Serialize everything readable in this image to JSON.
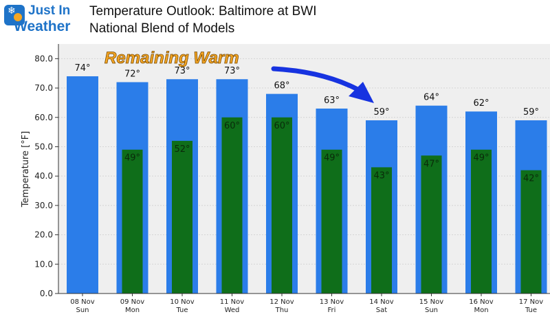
{
  "header": {
    "logo_line1": "Just In",
    "logo_line2": "Weather",
    "title": "Temperature Outlook: Baltimore at BWI",
    "subtitle": "National Blend of Models"
  },
  "colors": {
    "high_bar": "#2b7de9",
    "low_bar": "#0f6e1a",
    "annotation_text": "#f5a623",
    "arrow": "#1733e0",
    "brand": "#1e73c8"
  },
  "icons": [
    "snowflake-icon",
    "sun-icon",
    "arrow-icon"
  ],
  "chart_data": {
    "type": "bar",
    "title": "Temperature Outlook: Baltimore at BWI",
    "subtitle": "National Blend of Models",
    "ylabel": "Temperature [°F]",
    "xlabel": "",
    "ylim": [
      0,
      85
    ],
    "yticks": [
      "0.0",
      "10.0",
      "20.0",
      "30.0",
      "40.0",
      "50.0",
      "60.0",
      "70.0",
      "80.0"
    ],
    "grid": true,
    "annotation": "Remaining Warm",
    "categories": [
      {
        "date": "08 Nov",
        "day": "Sun"
      },
      {
        "date": "09 Nov",
        "day": "Mon"
      },
      {
        "date": "10 Nov",
        "day": "Tue"
      },
      {
        "date": "11 Nov",
        "day": "Wed"
      },
      {
        "date": "12 Nov",
        "day": "Thu"
      },
      {
        "date": "13 Nov",
        "day": "Fri"
      },
      {
        "date": "14 Nov",
        "day": "Sat"
      },
      {
        "date": "15 Nov",
        "day": "Sun"
      },
      {
        "date": "16 Nov",
        "day": "Mon"
      },
      {
        "date": "17 Nov",
        "day": "Tue"
      }
    ],
    "series": [
      {
        "values": [
          74,
          72,
          73,
          73,
          68,
          63,
          59,
          64,
          62,
          59
        ],
        "labels": [
          "74°",
          "72°",
          "73°",
          "73°",
          "68°",
          "63°",
          "59°",
          "64°",
          "62°",
          "59°"
        ]
      },
      {
        "values": [
          null,
          49,
          52,
          60,
          60,
          49,
          43,
          47,
          49,
          42
        ],
        "labels": [
          "",
          "49°",
          "52°",
          "60°",
          "60°",
          "49°",
          "43°",
          "47°",
          "49°",
          "42°"
        ]
      }
    ]
  }
}
